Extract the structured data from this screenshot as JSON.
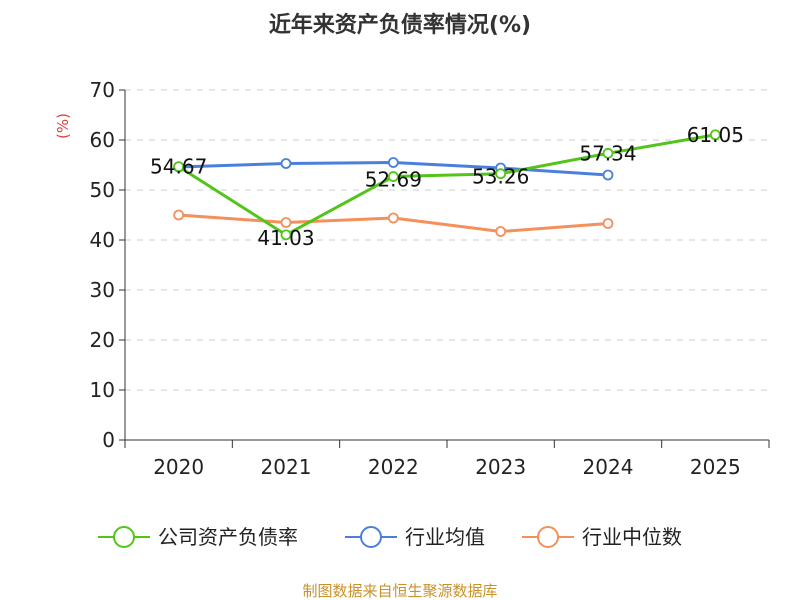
{
  "chart_data": {
    "type": "line",
    "title": "近年来资产负债率情况(%)",
    "ylabel": "(%)",
    "xlabel": "",
    "categories": [
      "2020",
      "2021",
      "2022",
      "2023",
      "2024",
      "2025"
    ],
    "ylim": [
      0,
      70
    ],
    "yticks": [
      0,
      10,
      20,
      30,
      40,
      50,
      60,
      70
    ],
    "grid": true,
    "legend_position": "bottom",
    "series": [
      {
        "name": "公司资产负债率",
        "color": "#52c41a",
        "values": [
          54.67,
          41.03,
          52.69,
          53.26,
          57.34,
          61.05
        ],
        "show_labels": true
      },
      {
        "name": "行业均值",
        "color": "#4a7fdc",
        "values": [
          54.6,
          55.3,
          55.5,
          54.4,
          53.0,
          null
        ],
        "show_labels": false
      },
      {
        "name": "行业中位数",
        "color": "#f4905a",
        "values": [
          45.0,
          43.5,
          44.4,
          41.7,
          43.3,
          null
        ],
        "show_labels": false
      }
    ]
  },
  "source_text": "制图数据来自恒生聚源数据库"
}
